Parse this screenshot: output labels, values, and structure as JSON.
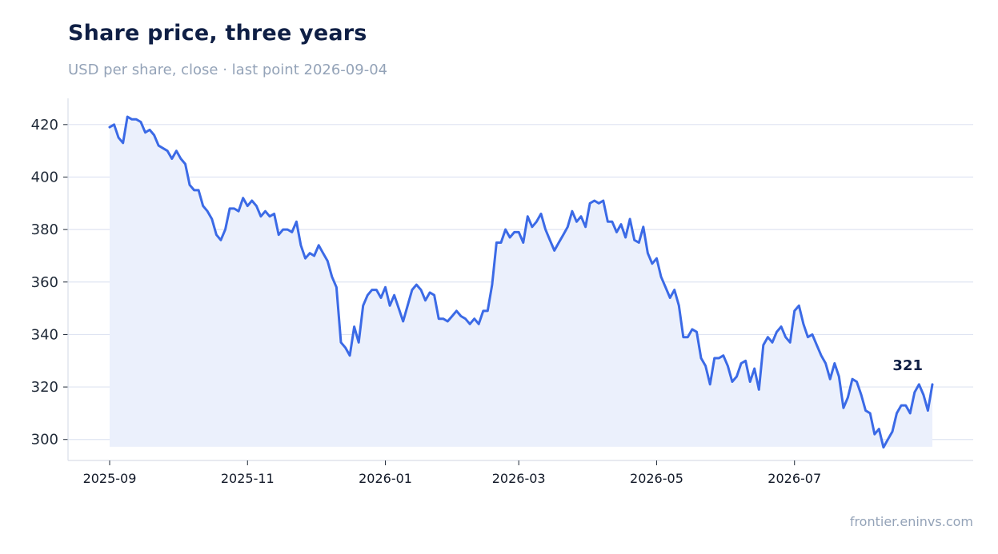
{
  "title": "Share price, three years",
  "subtitle": "USD per share, close · last point 2026-09-04",
  "source": "frontier.eninvs.com",
  "colors": {
    "line": "#3b6ae6",
    "area": "#ebf0fc",
    "grid": "#dfe4f2",
    "axis": "#d9dee8"
  },
  "chart_data": {
    "type": "area",
    "ylim": [
      292,
      430
    ],
    "yticks": [
      300,
      320,
      340,
      360,
      380,
      400,
      420
    ],
    "xticks": [
      {
        "date": "2025-09-01",
        "label": "2025-09"
      },
      {
        "date": "2025-11-01",
        "label": "2025-11"
      },
      {
        "date": "2026-01-01",
        "label": "2026-01"
      },
      {
        "date": "2026-03-01",
        "label": "2026-03"
      },
      {
        "date": "2026-05-01",
        "label": "2026-05"
      },
      {
        "date": "2026-07-01",
        "label": "2026-07"
      }
    ],
    "grid": true,
    "end_label": "321",
    "series": [
      {
        "points": [
          [
            "2025-09-01",
            419
          ],
          [
            "2025-09-03",
            420
          ],
          [
            "2025-09-05",
            415
          ],
          [
            "2025-09-07",
            413
          ],
          [
            "2025-09-09",
            423
          ],
          [
            "2025-09-11",
            422
          ],
          [
            "2025-09-13",
            422
          ],
          [
            "2025-09-14",
            421
          ],
          [
            "2025-09-16",
            417
          ],
          [
            "2025-09-18",
            418
          ],
          [
            "2025-09-20",
            416
          ],
          [
            "2025-09-22",
            412
          ],
          [
            "2025-09-24",
            411
          ],
          [
            "2025-09-26",
            410
          ],
          [
            "2025-09-28",
            407
          ],
          [
            "2025-09-30",
            410
          ],
          [
            "2025-10-01",
            407
          ],
          [
            "2025-10-03",
            405
          ],
          [
            "2025-10-05",
            397
          ],
          [
            "2025-10-07",
            395
          ],
          [
            "2025-10-09",
            395
          ],
          [
            "2025-10-11",
            389
          ],
          [
            "2025-10-13",
            387
          ],
          [
            "2025-10-15",
            384
          ],
          [
            "2025-10-17",
            378
          ],
          [
            "2025-10-19",
            376
          ],
          [
            "2025-10-21",
            380
          ],
          [
            "2025-10-23",
            388
          ],
          [
            "2025-10-25",
            388
          ],
          [
            "2025-10-27",
            387
          ],
          [
            "2025-10-29",
            392
          ],
          [
            "2025-10-31",
            389
          ],
          [
            "2025-11-02",
            391
          ],
          [
            "2025-11-04",
            389
          ],
          [
            "2025-11-06",
            385
          ],
          [
            "2025-11-08",
            387
          ],
          [
            "2025-11-10",
            385
          ],
          [
            "2025-11-12",
            386
          ],
          [
            "2025-11-14",
            378
          ],
          [
            "2025-11-16",
            380
          ],
          [
            "2025-11-18",
            380
          ],
          [
            "2025-11-20",
            379
          ],
          [
            "2025-11-22",
            383
          ],
          [
            "2025-11-24",
            374
          ],
          [
            "2025-11-26",
            369
          ],
          [
            "2025-11-28",
            371
          ],
          [
            "2025-11-30",
            370
          ],
          [
            "2025-12-02",
            374
          ],
          [
            "2025-12-04",
            371
          ],
          [
            "2025-12-06",
            368
          ],
          [
            "2025-12-08",
            362
          ],
          [
            "2025-12-10",
            358
          ],
          [
            "2025-12-12",
            337
          ],
          [
            "2025-12-14",
            335
          ],
          [
            "2025-12-16",
            332
          ],
          [
            "2025-12-18",
            343
          ],
          [
            "2025-12-20",
            337
          ],
          [
            "2025-12-22",
            351
          ],
          [
            "2025-12-24",
            355
          ],
          [
            "2025-12-26",
            357
          ],
          [
            "2025-12-28",
            357
          ],
          [
            "2025-12-30",
            354
          ],
          [
            "2026-01-01",
            358
          ],
          [
            "2025-12-31",
            358
          ]
        ]
      }
    ]
  }
}
